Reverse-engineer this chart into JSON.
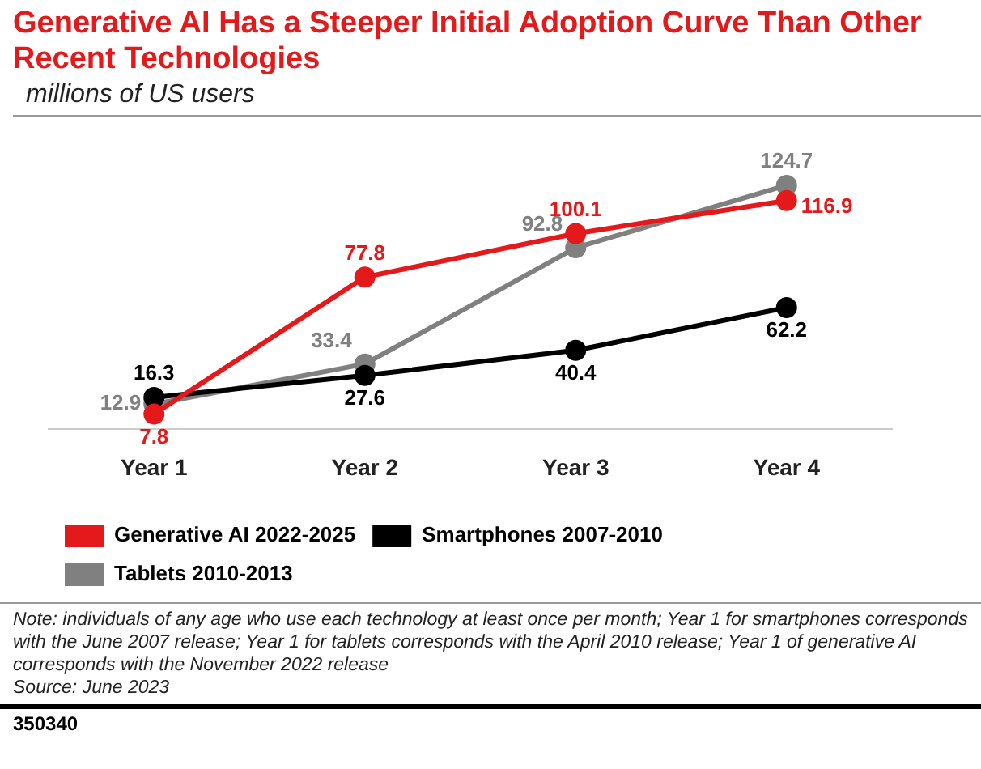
{
  "chart_data": {
    "type": "line",
    "title": "Generative AI Has a Steeper Initial Adoption Curve Than Other Recent Technologies",
    "subtitle": "millions of US users",
    "categories": [
      "Year 1",
      "Year 2",
      "Year 3",
      "Year 4"
    ],
    "series": [
      {
        "name": "Generative AI 2022-2025",
        "color": "#e3191b",
        "values": [
          7.8,
          77.8,
          100.1,
          116.9
        ]
      },
      {
        "name": "Smartphones 2007-2010",
        "color": "#000000",
        "values": [
          16.3,
          27.6,
          40.4,
          62.2
        ]
      },
      {
        "name": "Tablets 2010-2013",
        "color": "#808080",
        "values": [
          12.9,
          33.4,
          92.8,
          124.7
        ]
      }
    ],
    "data_labels": true,
    "marker": "circle",
    "legend": "bottom",
    "grid": false,
    "annotations": [
      "Note: individuals of any age who use each technology at least once per month; Year 1 for smartphones corresponds with the June 2007 release; Year 1 for tablets corresponds with the April 2010 release; Year 1 of generative AI corresponds with the November 2022 release",
      "Source: June 2023",
      "350340"
    ]
  }
}
